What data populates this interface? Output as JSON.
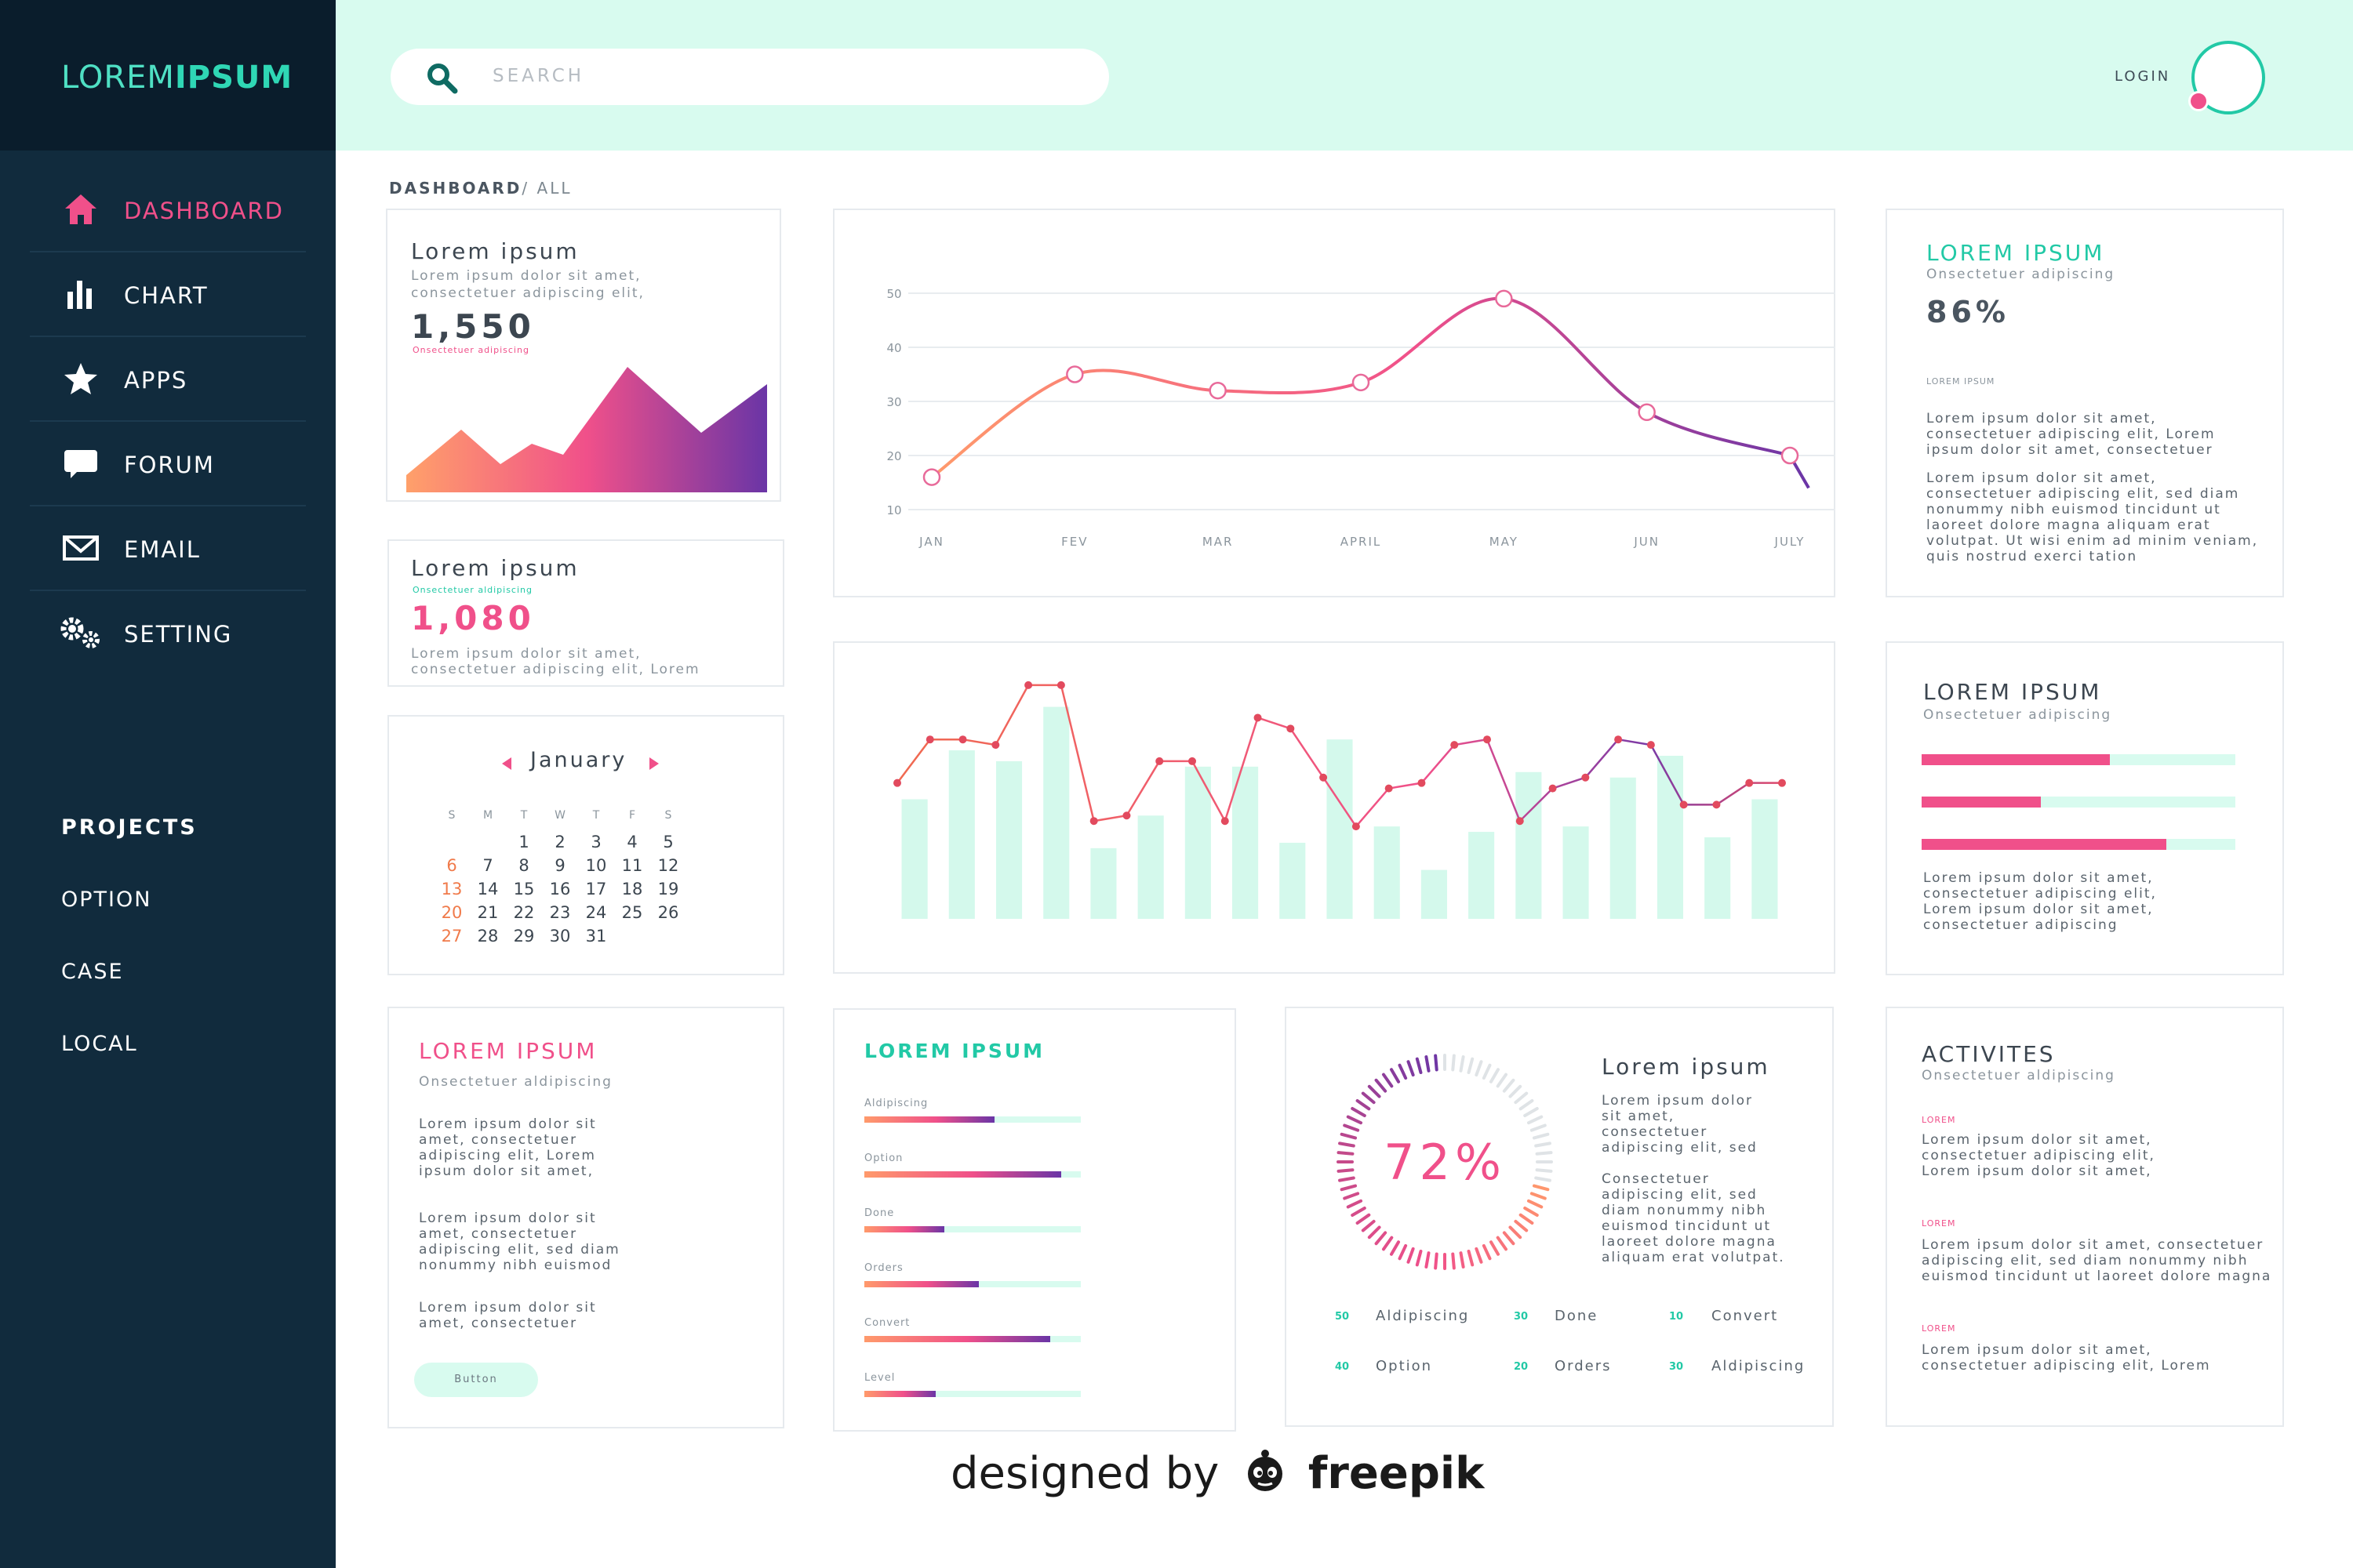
{
  "app": {
    "logo_light": "LOREM",
    "logo_bold": "IPSUM",
    "accent": "#22c9a6",
    "pink": "#f0508a",
    "sidebar_bg": "#112b3d",
    "header_bg": "#d8fbef"
  },
  "sidebar": {
    "items": [
      {
        "label": "DASHBOARD",
        "icon": "home-icon",
        "active": true
      },
      {
        "label": "CHART",
        "icon": "bar-chart-icon",
        "active": false
      },
      {
        "label": "APPS",
        "icon": "star-icon",
        "active": false
      },
      {
        "label": "FORUM",
        "icon": "chat-bubble-icon",
        "active": false
      },
      {
        "label": "EMAIL",
        "icon": "envelope-icon",
        "active": false
      },
      {
        "label": "SETTING",
        "icon": "gears-icon",
        "active": false
      }
    ],
    "projects_heading": "PROJECTS",
    "projects": [
      "OPTION",
      "CASE",
      "LOCAL"
    ]
  },
  "header": {
    "search_placeholder": "SEARCH",
    "login_label": "LOGIN"
  },
  "breadcrumb": {
    "current": "DASHBOARD",
    "rest": "/ ALL"
  },
  "card_area": {
    "title": "Lorem ipsum",
    "desc1": "Lorem ipsum dolor sit amet,",
    "desc2": "consectetuer adipiscing elit,",
    "value": "1,550",
    "caption": "Onsectetuer adipiscing"
  },
  "card_value": {
    "title": "Lorem ipsum",
    "caption": "Onsectetuer aldipiscing",
    "value": "1,080",
    "desc1": "Lorem ipsum dolor sit amet,",
    "desc2": "consectetuer adipiscing elit, Lorem"
  },
  "calendar": {
    "month": "January",
    "weekdays": [
      "S",
      "M",
      "T",
      "W",
      "T",
      "F",
      "S"
    ],
    "weeks": [
      [
        "",
        "",
        "1",
        "2",
        "3",
        "4",
        "5"
      ],
      [
        "6",
        "7",
        "8",
        "9",
        "10",
        "11",
        "12"
      ],
      [
        "13",
        "14",
        "15",
        "16",
        "17",
        "18",
        "19"
      ],
      [
        "20",
        "21",
        "22",
        "23",
        "24",
        "25",
        "26"
      ],
      [
        "27",
        "28",
        "29",
        "30",
        "31",
        "",
        ""
      ]
    ]
  },
  "chart_data": [
    {
      "type": "line",
      "categories": [
        "JAN",
        "FEV",
        "MAR",
        "APRIL",
        "MAY",
        "JUN",
        "JULY"
      ],
      "series": [
        {
          "values": [
            16,
            35,
            32,
            33.5,
            49,
            28,
            20
          ]
        }
      ],
      "ylim": [
        10,
        50
      ],
      "yticks": [
        "10",
        "20",
        "30",
        "40",
        "50"
      ],
      "grid": true
    },
    {
      "type": "bar",
      "bars": [
        22,
        31,
        29,
        39,
        13,
        19,
        28,
        28,
        14,
        33,
        17,
        9,
        16,
        27,
        17,
        26,
        30,
        15,
        22
      ],
      "line": [
        25,
        33,
        33,
        32,
        43,
        43,
        18,
        19,
        29,
        29,
        18,
        37,
        35,
        26,
        17,
        24,
        25,
        32,
        33,
        18,
        24,
        26,
        33,
        32,
        21,
        21,
        25,
        25
      ],
      "ylim": [
        0,
        45
      ],
      "grid": false
    },
    {
      "type": "bar",
      "orientation": "horizontal",
      "values": [
        60,
        38,
        78
      ],
      "xlim": [
        0,
        100
      ]
    }
  ],
  "card_stat": {
    "title": "LOREM IPSUM",
    "sub": "Onsectetuer adipiscing",
    "value": "86%",
    "tiny": "LOREM IPSUM",
    "p1": "Lorem ipsum dolor sit amet, consectetuer adipiscing elit, Lorem ipsum dolor sit amet, consectetuer",
    "p2": "Lorem ipsum dolor sit amet, consectetuer adipiscing elit, sed diam nonummy nibh euismod tincidunt ut laoreet dolore magna aliquam erat volutpat. Ut wisi enim ad minim veniam, quis nostrud exerci tation"
  },
  "card_bars": {
    "title": "LOREM IPSUM",
    "sub": "Onsectetuer adipiscing",
    "text": "Lorem ipsum dolor sit amet, consectetuer adipiscing elit, Lorem ipsum dolor sit amet, consectetuer adipiscing"
  },
  "card_text": {
    "title": "LOREM IPSUM",
    "sub": "Onsectetuer aldipiscing",
    "p1": "Lorem ipsum dolor sit amet, consectetuer adipiscing elit, Lorem ipsum dolor sit amet,",
    "p2": "Lorem ipsum dolor sit amet, consectetuer adipiscing elit, sed diam nonummy nibh euismod",
    "p3": "Lorem ipsum dolor sit amet, consectetuer",
    "button": "Button"
  },
  "card_progress": {
    "title": "LOREM IPSUM",
    "items": [
      {
        "label": "Aldipiscing",
        "value": 0.6
      },
      {
        "label": "Option",
        "value": 0.91
      },
      {
        "label": "Done",
        "value": 0.37
      },
      {
        "label": "Orders",
        "value": 0.53
      },
      {
        "label": "Convert",
        "value": 0.86
      },
      {
        "label": "Level",
        "value": 0.33
      }
    ]
  },
  "card_donut": {
    "percent_label": "72%",
    "percent": 72,
    "title": "Lorem ipsum",
    "p1": "Lorem ipsum dolor sit amet, consectetuer adipiscing elit, sed",
    "p2": "Consectetuer adipiscing elit, sed diam nonummy nibh euismod tincidunt ut laoreet dolore magna aliquam erat volutpat.",
    "stats": [
      {
        "num": "50",
        "label": "Aldipiscing"
      },
      {
        "num": "30",
        "label": "Done"
      },
      {
        "num": "10",
        "label": "Convert"
      },
      {
        "num": "40",
        "label": "Option"
      },
      {
        "num": "20",
        "label": "Orders"
      },
      {
        "num": "30",
        "label": "Aldipiscing"
      }
    ]
  },
  "card_activities": {
    "title": "ACTIVITES",
    "sub": "Onsectetuer aldipiscing",
    "items": [
      {
        "tag": "LOREM",
        "text": "Lorem ipsum dolor sit amet, consectetuer adipiscing elit, Lorem ipsum dolor sit amet,"
      },
      {
        "tag": "LOREM",
        "text": "Lorem ipsum dolor sit amet, consectetuer adipiscing elit, sed diam nonummy nibh euismod tincidunt ut laoreet dolore magna"
      },
      {
        "tag": "LOREM",
        "text": "Lorem ipsum dolor sit amet, consectetuer adipiscing elit, Lorem"
      }
    ]
  },
  "credit": {
    "prefix": "designed by",
    "brand": "freepik"
  }
}
